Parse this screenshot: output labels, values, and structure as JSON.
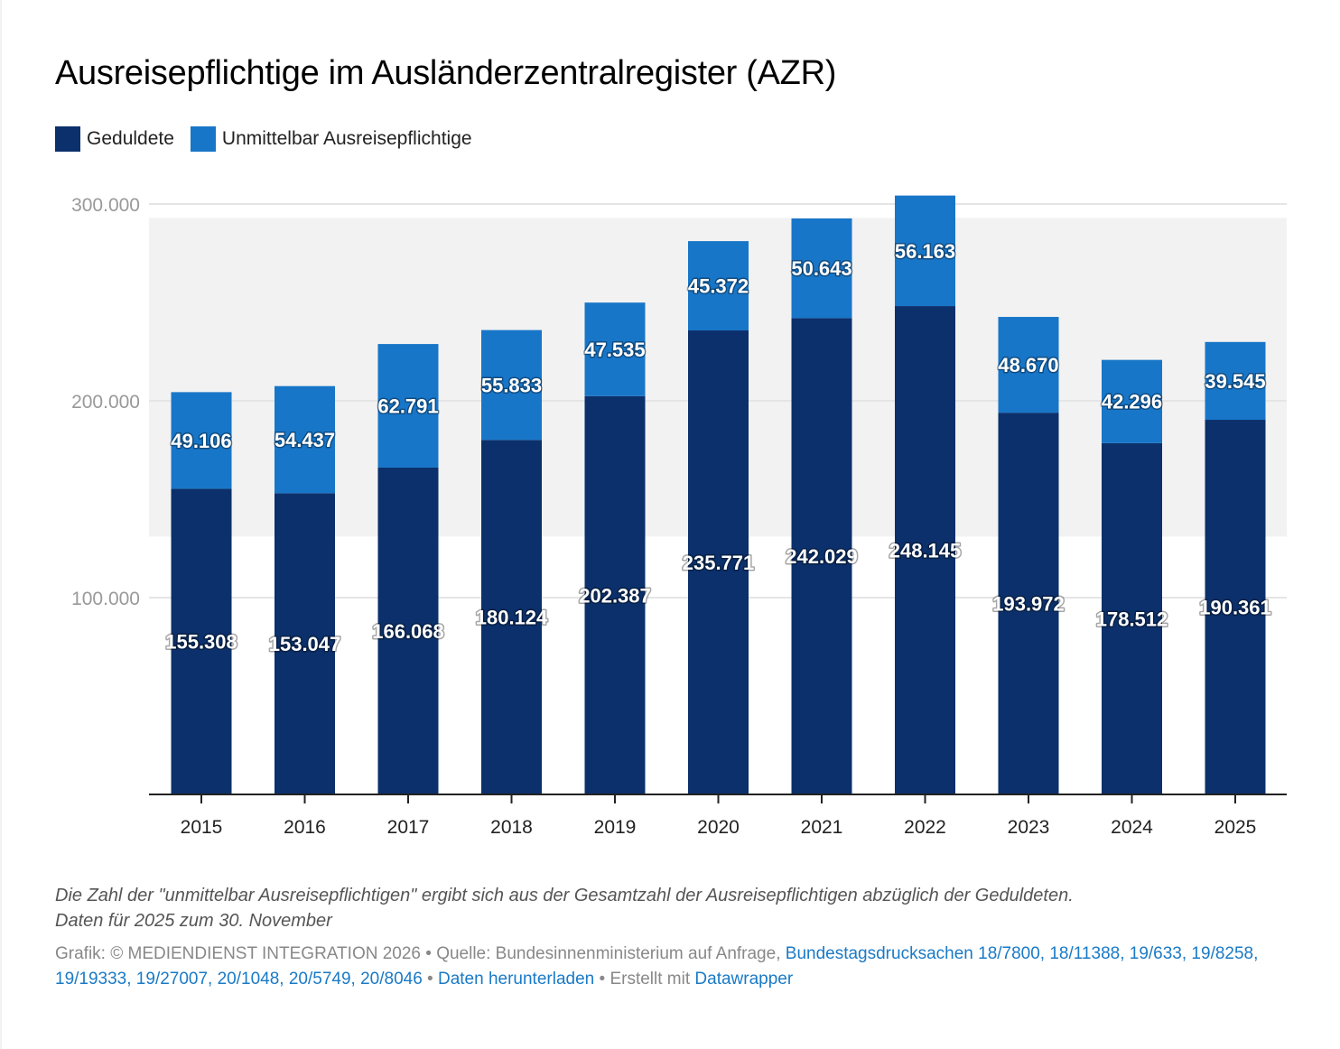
{
  "title": "Ausreisepflichtige im Ausländerzentralregister (AZR)",
  "legend": [
    {
      "label": "Geduldete",
      "color": "#0b306b"
    },
    {
      "label": "Unmittelbar Ausreisepflichtige",
      "color": "#1876c8"
    }
  ],
  "colors": {
    "geduldete": "#0b306b",
    "unmittelbar": "#1876c8",
    "highlight_band": "#f2f2f2",
    "gridline": "#e5e5e5",
    "axis": "#222222",
    "link": "#1a7ac6"
  },
  "chart_data": {
    "type": "bar",
    "stacked": true,
    "title": "Ausreisepflichtige im Ausländerzentralregister (AZR)",
    "xlabel": "",
    "ylabel": "",
    "categories": [
      "2015",
      "2016",
      "2017",
      "2018",
      "2019",
      "2020",
      "2021",
      "2022",
      "2023",
      "2024",
      "2025"
    ],
    "series": [
      {
        "name": "Geduldete",
        "values": [
          155308,
          153047,
          166068,
          180124,
          202387,
          235771,
          242029,
          248145,
          193972,
          178512,
          190361
        ]
      },
      {
        "name": "Unmittelbar Ausreisepflichtige",
        "values": [
          49106,
          54437,
          62791,
          55833,
          47535,
          45372,
          50643,
          56163,
          48670,
          42296,
          39545
        ]
      }
    ],
    "value_labels": [
      [
        "155.308",
        "153.047",
        "166.068",
        "180.124",
        "202.387",
        "235.771",
        "242.029",
        "248.145",
        "193.972",
        "178.512",
        "190.361"
      ],
      [
        "49.106",
        "54.437",
        "62.791",
        "55.833",
        "47.535",
        "45.372",
        "50.643",
        "56.163",
        "48.670",
        "42.296",
        "39.545"
      ]
    ],
    "ylim": [
      0,
      300000
    ],
    "yticks": [
      100000,
      200000,
      300000
    ],
    "ytick_labels": [
      "100.000",
      "200.000",
      "300.000"
    ],
    "highlight_range": [
      131000,
      293000
    ],
    "grid": true,
    "legend_position": "top-left"
  },
  "notes": [
    "Die Zahl der \"unmittelbar Ausreisepflichtigen\" ergibt sich aus der Gesamtzahl der Ausreisepflichtigen abzüglich der Geduldeten.",
    "Daten für 2025 zum 30. November"
  ],
  "footer": {
    "credit": "Grafik: © MEDIENDIENST INTEGRATION 2026 • Quelle: Bundesinnenministerium auf Anfrage, ",
    "source_link": "Bundestagsdrucksachen 18/7800, 18/11388, 19/633, 19/8258, 19/19333, 19/27007, 20/1048, 20/5749, 20/8046",
    "sep1": " • ",
    "download_link": "Daten herunterladen",
    "sep2": " • Erstellt mit ",
    "datawrapper_link": "Datawrapper"
  }
}
